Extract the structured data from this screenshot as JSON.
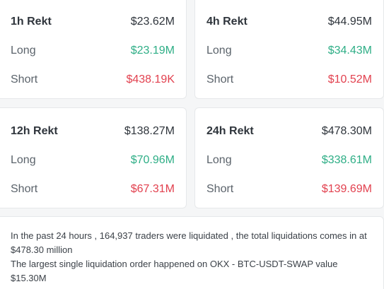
{
  "cards": [
    {
      "title": "1h Rekt",
      "total": "$23.62M",
      "long_label": "Long",
      "long_value": "$23.19M",
      "short_label": "Short",
      "short_value": "$438.19K"
    },
    {
      "title": "4h Rekt",
      "total": "$44.95M",
      "long_label": "Long",
      "long_value": "$34.43M",
      "short_label": "Short",
      "short_value": "$10.52M"
    },
    {
      "title": "12h Rekt",
      "total": "$138.27M",
      "long_label": "Long",
      "long_value": "$70.96M",
      "short_label": "Short",
      "short_value": "$67.31M"
    },
    {
      "title": "24h Rekt",
      "total": "$478.30M",
      "long_label": "Long",
      "long_value": "$338.61M",
      "short_label": "Short",
      "short_value": "$139.69M"
    }
  ],
  "summary": {
    "line1": "In the past 24 hours , 164,937 traders were liquidated , the total liquidations comes in at $478.30 million",
    "line2": "The largest single liquidation order happened on OKX - BTC-USDT-SWAP value $15.30M"
  },
  "colors": {
    "long": "#2eae86",
    "short": "#e2414f"
  }
}
